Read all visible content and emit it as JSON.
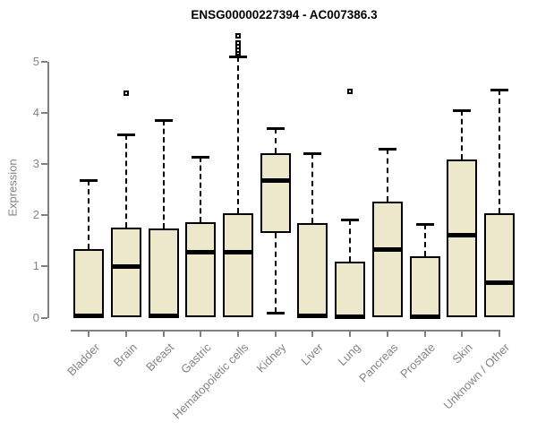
{
  "chart_data": {
    "type": "boxplot",
    "title": "ENSG00000227394 - AC007386.3",
    "ylabel": "Expression",
    "xlabel": "",
    "ylim": [
      0,
      5.6
    ],
    "yticks": [
      0,
      1,
      2,
      3,
      4,
      5
    ],
    "grid": false,
    "legend_position": "none",
    "categories": [
      "Bladder",
      "Brain",
      "Breast",
      "Gastric",
      "Hematopoietic cells",
      "Kidney",
      "Liver",
      "Lung",
      "Pancreas",
      "Prostate",
      "Skin",
      "Unknown / Other"
    ],
    "series": [
      {
        "name": "Bladder",
        "whisker_low": 0,
        "q1": 0,
        "median": 0.03,
        "q3": 1.33,
        "whisker_high": 2.68,
        "outliers": []
      },
      {
        "name": "Brain",
        "whisker_low": 0,
        "q1": 0,
        "median": 0.99,
        "q3": 1.76,
        "whisker_high": 3.57,
        "outliers": [
          4.38
        ]
      },
      {
        "name": "Breast",
        "whisker_low": 0,
        "q1": 0,
        "median": 0.03,
        "q3": 1.74,
        "whisker_high": 3.86,
        "outliers": []
      },
      {
        "name": "Gastric",
        "whisker_low": 0,
        "q1": 0,
        "median": 1.27,
        "q3": 1.87,
        "whisker_high": 3.13,
        "outliers": []
      },
      {
        "name": "Hematopoietic cells",
        "whisker_low": 0,
        "q1": 0,
        "median": 1.28,
        "q3": 2.04,
        "whisker_high": 5.09,
        "outliers": [
          5.16,
          5.22,
          5.28,
          5.35,
          5.49
        ]
      },
      {
        "name": "Kidney",
        "whisker_low": 0.09,
        "q1": 1.65,
        "median": 2.68,
        "q3": 3.21,
        "whisker_high": 3.69,
        "outliers": []
      },
      {
        "name": "Liver",
        "whisker_low": 0,
        "q1": 0,
        "median": 0.03,
        "q3": 1.84,
        "whisker_high": 3.21,
        "outliers": []
      },
      {
        "name": "Lung",
        "whisker_low": 0,
        "q1": 0,
        "median": 0.02,
        "q3": 1.1,
        "whisker_high": 1.91,
        "outliers": [
          4.42
        ]
      },
      {
        "name": "Pancreas",
        "whisker_low": 0,
        "q1": 0,
        "median": 1.32,
        "q3": 2.26,
        "whisker_high": 3.3,
        "outliers": []
      },
      {
        "name": "Prostate",
        "whisker_low": 0,
        "q1": 0,
        "median": 0.02,
        "q3": 1.2,
        "whisker_high": 1.83,
        "outliers": []
      },
      {
        "name": "Skin",
        "whisker_low": 0,
        "q1": 0,
        "median": 1.6,
        "q3": 3.08,
        "whisker_high": 4.04,
        "outliers": []
      },
      {
        "name": "Unknown / Other",
        "whisker_low": 0,
        "q1": 0,
        "median": 0.68,
        "q3": 2.03,
        "whisker_high": 4.45,
        "outliers": []
      }
    ],
    "style": {
      "box_fill": "#ede8cc",
      "box_border": "#000000",
      "median_color": "#000000",
      "whisker_color": "#000000",
      "outlier_fill": "#ffffff",
      "axis_color": "#808080",
      "tick_label_color": "#848484",
      "title_color": "#000000"
    }
  }
}
